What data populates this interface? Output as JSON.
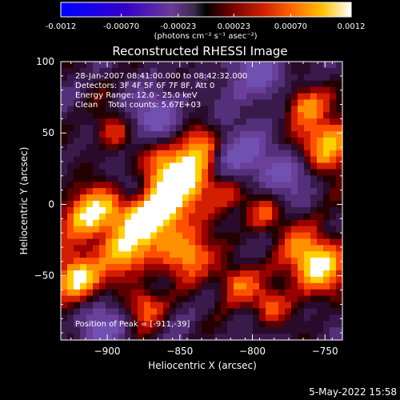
{
  "colorbar": {
    "tick_labels": [
      "-0.0012",
      "-0.00070",
      "-0.00023",
      "0.00023",
      "0.00070",
      "0.0012"
    ],
    "tick_values": [
      -0.0012,
      -0.0007,
      -0.00023,
      0.00023,
      0.0007,
      0.0012
    ],
    "range": [
      -0.0012,
      0.0012
    ],
    "units": "(photons cm⁻² s⁻¹ asec⁻²)",
    "colors": [
      "#0000ff",
      "#4d00cc",
      "#7f3f9f",
      "#6a3a8a",
      "#4a0f00",
      "#8b0000",
      "#d42400",
      "#ff6a00",
      "#ffb000",
      "#ffffff"
    ]
  },
  "chart_data": {
    "type": "heatmap",
    "title": "Reconstructed RHESSI Image",
    "xlabel": "Heliocentric X (arcsec)",
    "ylabel": "Heliocentric Y (arcsec)",
    "xlim": [
      -932,
      -738
    ],
    "ylim": [
      -95,
      100
    ],
    "xticks": [
      -900,
      -850,
      -800,
      -750
    ],
    "yticks": [
      -50,
      0,
      50,
      100
    ],
    "annotations": [
      "28-Jan-2007 08:41:00.000 to 08:42:32.000",
      "Detectors: 3F 4F 5F 6F 7F 8F, Att 0",
      "Energy Range: 12.0 - 25.0 keV",
      "Clean    Total counts: 5.67E+03"
    ],
    "peak_label": "Position of Peak = [-911,-39]",
    "peak": [
      -911,
      -39
    ]
  },
  "footer": {
    "timestamp": "5-May-2022 15:58"
  }
}
